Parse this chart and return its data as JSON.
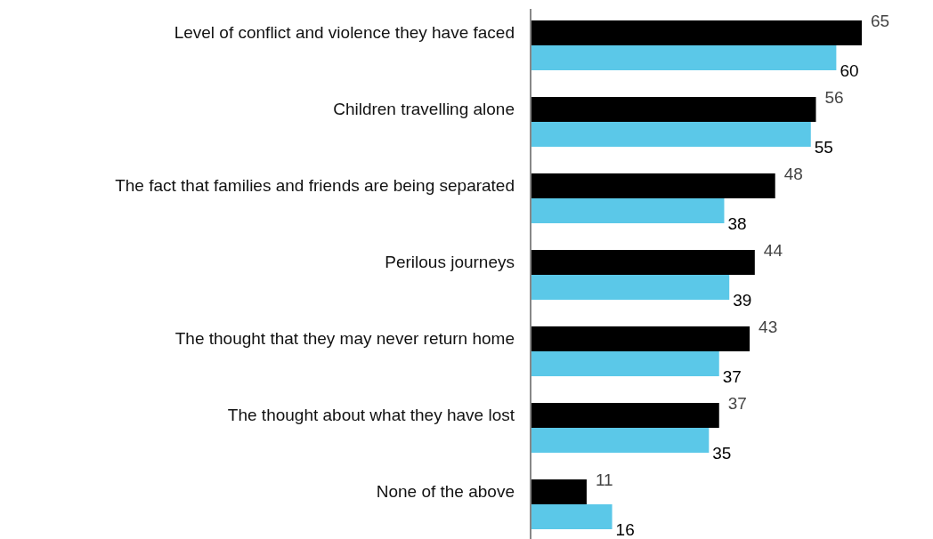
{
  "chart_data": {
    "type": "bar",
    "orientation": "horizontal",
    "data_labels": true,
    "categories": [
      "Level of conflict and violence they have faced",
      "Children travelling alone",
      "The fact that families and friends are being separated",
      "Perilous journeys",
      "The thought that they may never return home",
      "The thought about what they have lost",
      "None of the above"
    ],
    "series": [
      {
        "color": "#000000",
        "values": [
          65,
          56,
          48,
          44,
          43,
          37,
          11
        ]
      },
      {
        "color": "#5bc8e8",
        "values": [
          60,
          55,
          38,
          39,
          37,
          35,
          16
        ]
      }
    ]
  }
}
